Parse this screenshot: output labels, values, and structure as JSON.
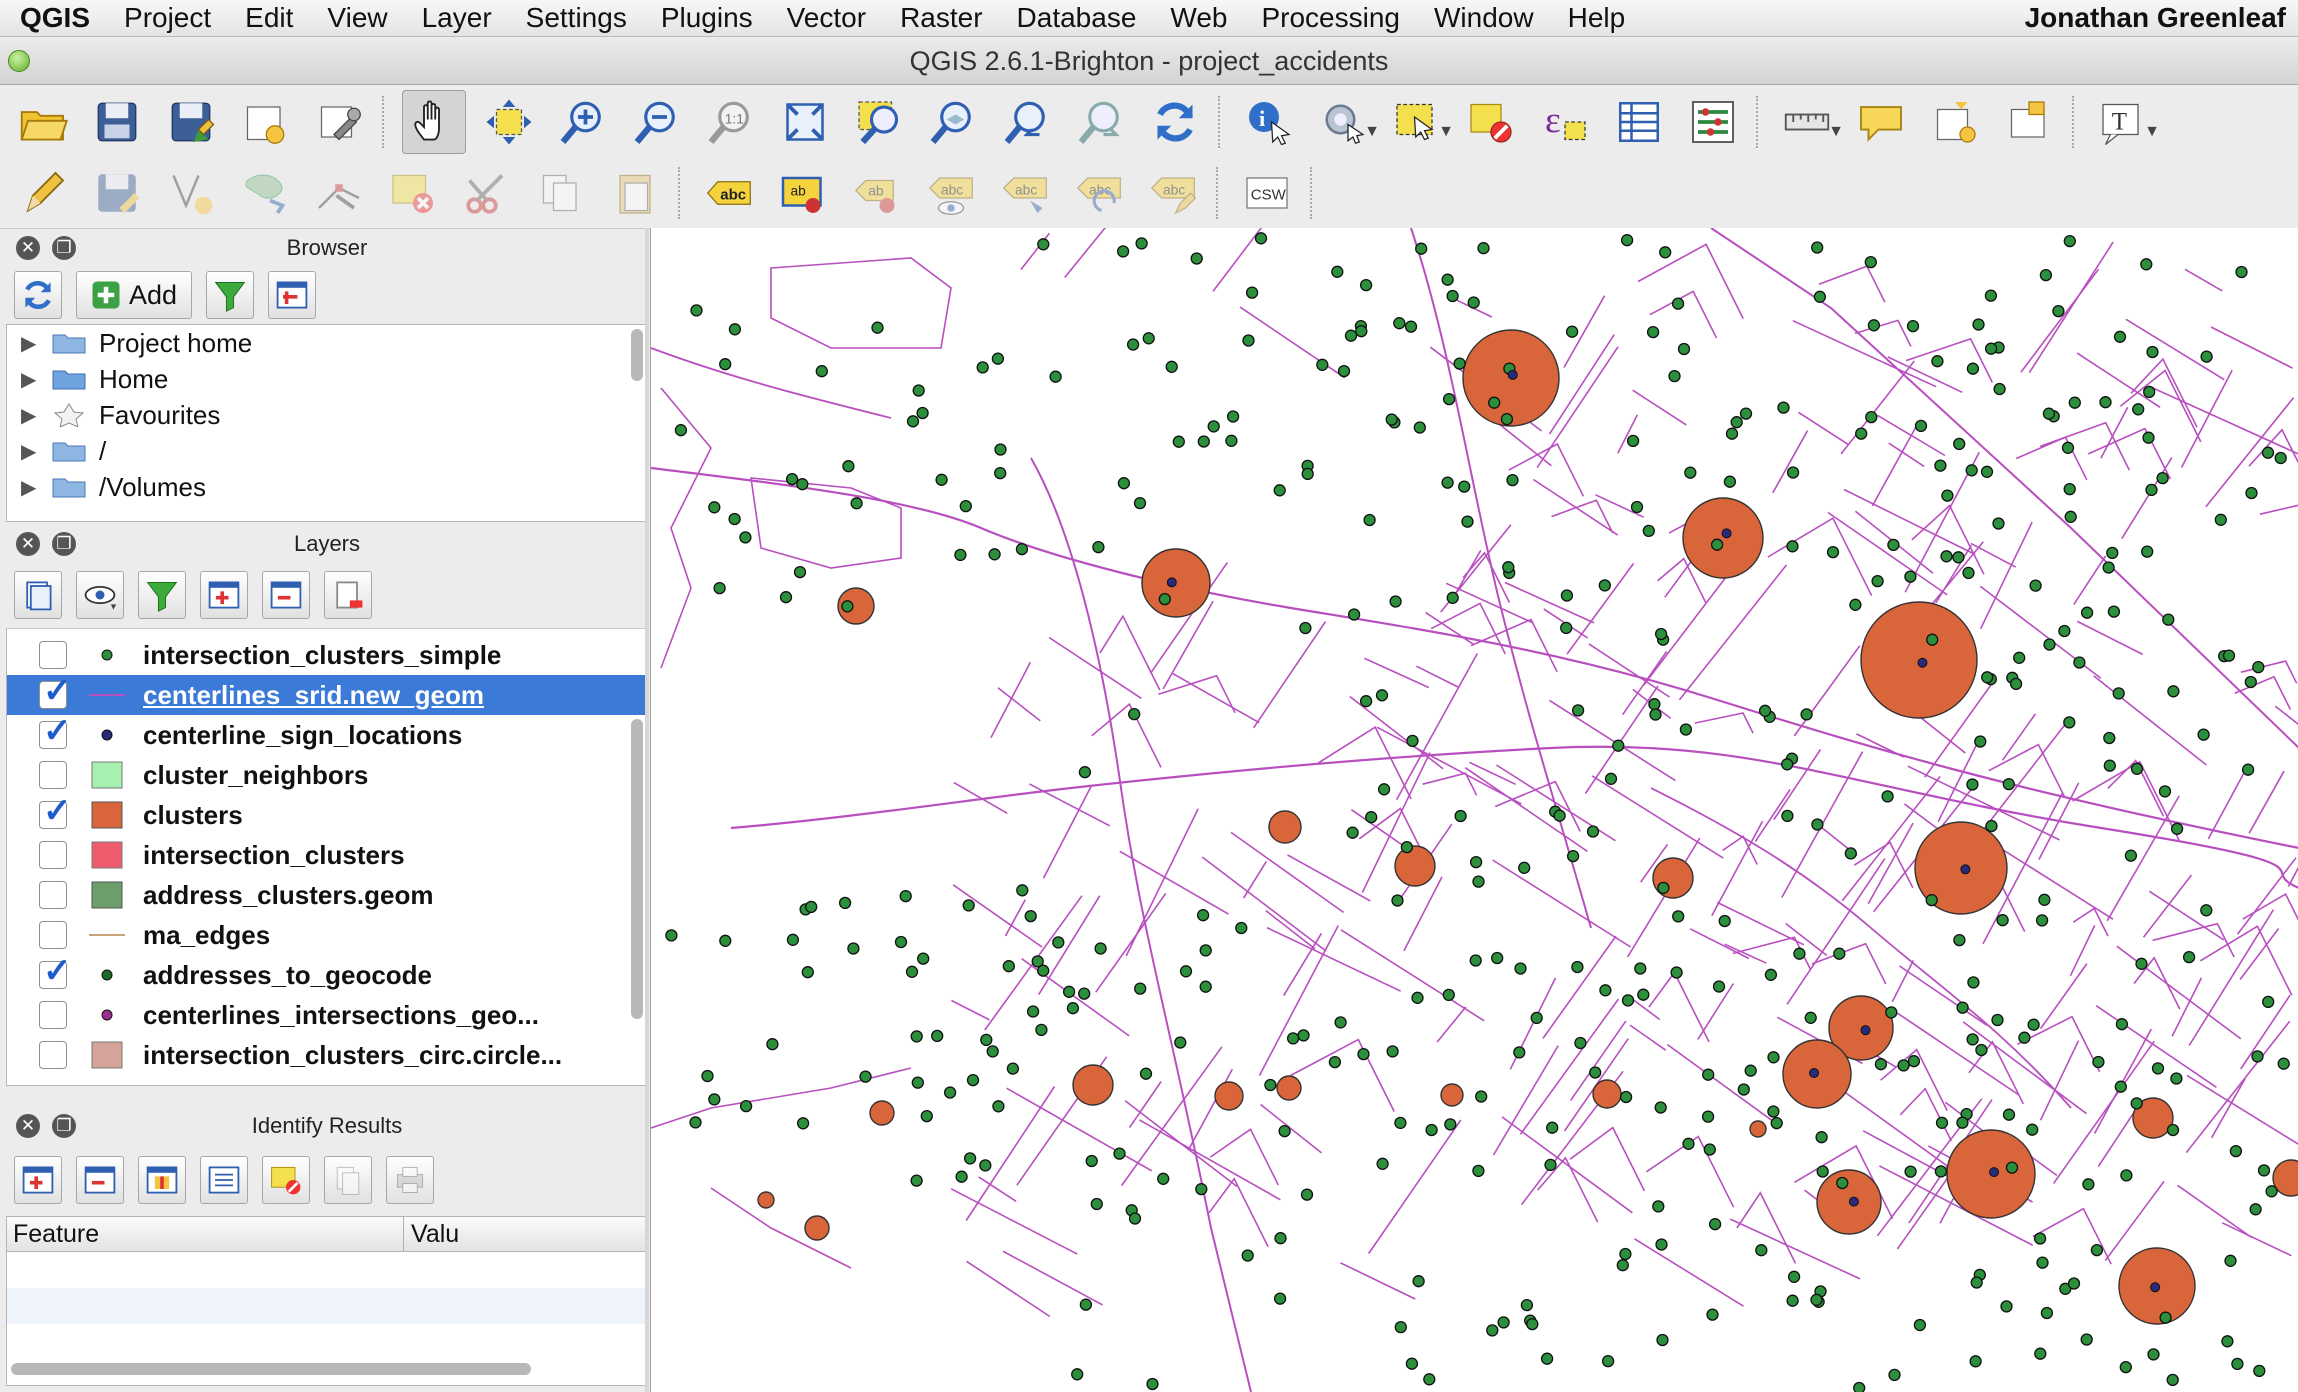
{
  "menubar": {
    "app": "QGIS",
    "items": [
      "Project",
      "Edit",
      "View",
      "Layer",
      "Settings",
      "Plugins",
      "Vector",
      "Raster",
      "Database",
      "Web",
      "Processing",
      "Window",
      "Help"
    ],
    "user": "Jonathan Greenleaf"
  },
  "window": {
    "title": "QGIS 2.6.1-Brighton - project_accidents"
  },
  "browser": {
    "title": "Browser",
    "add_label": "Add",
    "items": [
      "Project home",
      "Home",
      "Favourites",
      "/",
      "/Volumes"
    ]
  },
  "layers": {
    "title": "Layers",
    "items": [
      {
        "name": "intersection_clusters_simple",
        "checked": false,
        "symbol": "point-green"
      },
      {
        "name": "centerlines_srid.new_geom",
        "checked": true,
        "symbol": "line-purple",
        "selected": true
      },
      {
        "name": "centerline_sign_locations",
        "checked": true,
        "symbol": "point-navy"
      },
      {
        "name": "cluster_neighbors",
        "checked": false,
        "symbol": "fill-lightgreen"
      },
      {
        "name": "clusters",
        "checked": true,
        "symbol": "fill-orange"
      },
      {
        "name": "intersection_clusters",
        "checked": false,
        "symbol": "fill-red"
      },
      {
        "name": "address_clusters.geom",
        "checked": false,
        "symbol": "fill-darkgreen"
      },
      {
        "name": "ma_edges",
        "checked": false,
        "symbol": "line-tan"
      },
      {
        "name": "addresses_to_geocode",
        "checked": true,
        "symbol": "point-green-dark"
      },
      {
        "name": "centerlines_intersections_geo...",
        "checked": false,
        "symbol": "point-purple"
      },
      {
        "name": "intersection_clusters_circ.circle...",
        "checked": false,
        "symbol": "fill-pink"
      }
    ]
  },
  "identify": {
    "title": "Identify Results",
    "col_feature": "Feature",
    "col_value": "Valu"
  },
  "colors": {
    "roads": "#b84fbf",
    "cluster_fill": "#d9663a",
    "point_fill": "#2c8f3c",
    "sign_fill": "#2a2a7a",
    "selection": "#3b7ad6"
  }
}
